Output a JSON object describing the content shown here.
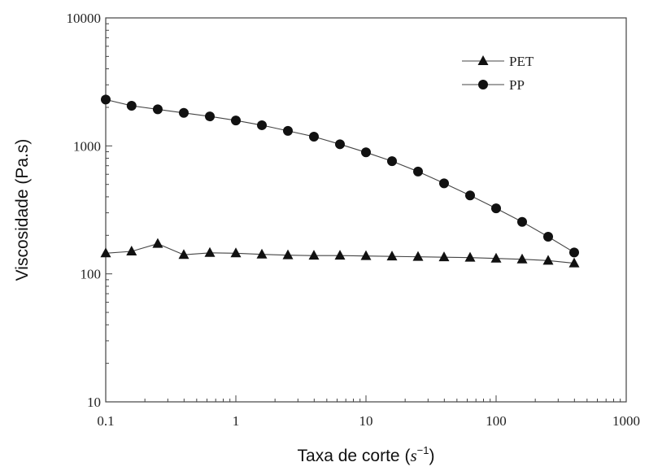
{
  "chart_data": {
    "type": "line",
    "xscale": "log",
    "yscale": "log",
    "xlim": [
      0.1,
      1000
    ],
    "ylim": [
      10,
      10000
    ],
    "xticks": [
      "0.1",
      "1",
      "10",
      "100",
      "1000"
    ],
    "yticks": [
      "10",
      "100",
      "1000",
      "10000"
    ],
    "xlabel": "Taxa de corte (",
    "xlabel_var": "s",
    "xlabel_exp": "−1",
    "xlabel_close": ")",
    "ylabel": "Viscosidade (Pa.s)",
    "legend_position": "top-right",
    "grid": false,
    "series": [
      {
        "name": "PET",
        "marker": "triangle",
        "x": [
          0.1,
          0.158,
          0.251,
          0.398,
          0.631,
          1,
          1.585,
          2.512,
          3.981,
          6.31,
          10,
          15.85,
          25.12,
          39.81,
          63.1,
          100,
          158.5,
          251.2,
          398.1
        ],
        "y": [
          145,
          150,
          172,
          141,
          146,
          145,
          142,
          140,
          139,
          139,
          138,
          137,
          136,
          135,
          134,
          132,
          130,
          127,
          121
        ]
      },
      {
        "name": "PP",
        "marker": "circle",
        "x": [
          0.1,
          0.158,
          0.251,
          0.398,
          0.631,
          1,
          1.585,
          2.512,
          3.981,
          6.31,
          10,
          15.85,
          25.12,
          39.81,
          63.1,
          100,
          158.5,
          251.2,
          398.1
        ],
        "y": [
          2300,
          2060,
          1930,
          1810,
          1700,
          1580,
          1450,
          1310,
          1180,
          1030,
          890,
          760,
          630,
          510,
          410,
          325,
          255,
          195,
          147
        ]
      }
    ]
  }
}
